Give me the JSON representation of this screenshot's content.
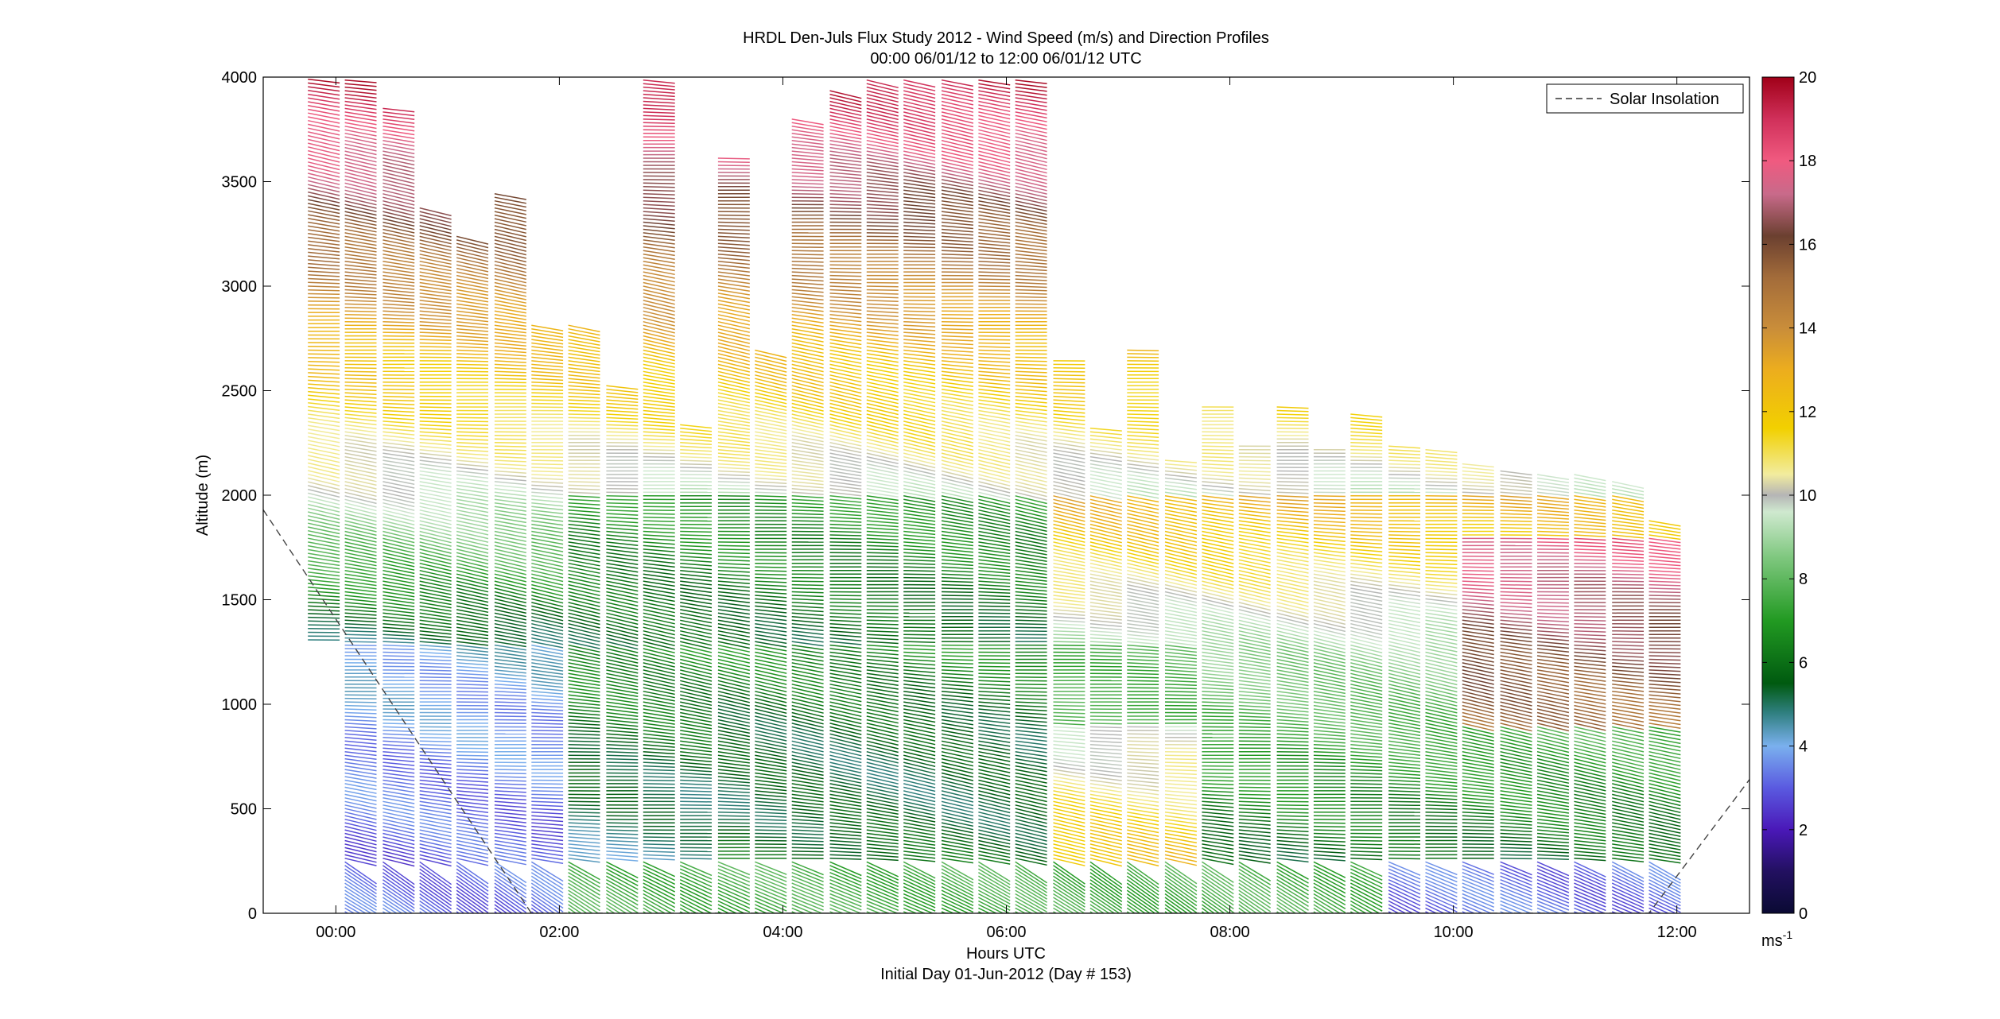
{
  "chart_data": {
    "type": "scatter",
    "title_line1": "HRDL Den-Juls Flux Study 2012 - Wind Speed (m/s) and Direction Profiles",
    "title_line2": "00:00 06/01/12 to 12:00 06/01/12  UTC",
    "xlabel": "Hours UTC",
    "xlabel_sub": "Initial Day 01-Jun-2012 (Day # 153)",
    "ylabel": "Altitude (m)",
    "xlim": [
      -0.65,
      12.65
    ],
    "ylim": [
      0,
      4000
    ],
    "x_ticks": [
      {
        "value": 0,
        "label": "00:00"
      },
      {
        "value": 2,
        "label": "02:00"
      },
      {
        "value": 4,
        "label": "04:00"
      },
      {
        "value": 6,
        "label": "06:00"
      },
      {
        "value": 8,
        "label": "08:00"
      },
      {
        "value": 10,
        "label": "10:00"
      },
      {
        "value": 12,
        "label": "12:00"
      }
    ],
    "y_ticks": [
      0,
      500,
      1000,
      1500,
      2000,
      2500,
      3000,
      3500,
      4000
    ],
    "legend": {
      "label": "Solar Insolation",
      "position": "top-right"
    },
    "colorbar": {
      "range": [
        0,
        20
      ],
      "ticks": [
        0,
        2,
        4,
        6,
        8,
        10,
        12,
        14,
        16,
        18,
        20
      ],
      "unit_base": "ms",
      "unit_exp": "-1",
      "stops": [
        {
          "v": 0,
          "c": "#0a0a33"
        },
        {
          "v": 1,
          "c": "#221060"
        },
        {
          "v": 2,
          "c": "#4a18b8"
        },
        {
          "v": 3,
          "c": "#5a5ae0"
        },
        {
          "v": 4,
          "c": "#7ab0ee"
        },
        {
          "v": 4.8,
          "c": "#2f7f7f"
        },
        {
          "v": 5.5,
          "c": "#005a10"
        },
        {
          "v": 7,
          "c": "#229a22"
        },
        {
          "v": 8.5,
          "c": "#7ec77e"
        },
        {
          "v": 9.6,
          "c": "#cfe9cf"
        },
        {
          "v": 10,
          "c": "#b5b5b5"
        },
        {
          "v": 10.5,
          "c": "#f2ec9e"
        },
        {
          "v": 11.6,
          "c": "#f2d000"
        },
        {
          "v": 13,
          "c": "#ecad1e"
        },
        {
          "v": 14,
          "c": "#c98d3a"
        },
        {
          "v": 15.2,
          "c": "#a36c3a"
        },
        {
          "v": 16.2,
          "c": "#6b4030"
        },
        {
          "v": 17.2,
          "c": "#c86a8a"
        },
        {
          "v": 18,
          "c": "#f05a80"
        },
        {
          "v": 19,
          "c": "#d0305a"
        },
        {
          "v": 20,
          "c": "#a00018"
        }
      ]
    },
    "solar_insolation_line": [
      {
        "x": -0.65,
        "y": 1930
      },
      {
        "x": 1.75,
        "y": 0
      },
      {
        "x": 11.75,
        "y": 0
      },
      {
        "x": 12.65,
        "y": 640
      }
    ],
    "profiles": [
      {
        "time": -0.25,
        "top": 4000,
        "bottom": 1300
      },
      {
        "time": 0.08,
        "top": 4000,
        "bottom": 0
      },
      {
        "time": 0.42,
        "top": 3850,
        "bottom": 0
      },
      {
        "time": 0.75,
        "top": 3380,
        "bottom": 0
      },
      {
        "time": 1.08,
        "top": 3250,
        "bottom": 0
      },
      {
        "time": 1.42,
        "top": 3450,
        "bottom": 0
      },
      {
        "time": 1.75,
        "top": 2820,
        "bottom": 0
      },
      {
        "time": 2.08,
        "top": 2820,
        "bottom": 0
      },
      {
        "time": 2.42,
        "top": 2530,
        "bottom": 0
      },
      {
        "time": 2.75,
        "top": 4000,
        "bottom": 0
      },
      {
        "time": 3.08,
        "top": 2350,
        "bottom": 0
      },
      {
        "time": 3.42,
        "top": 3620,
        "bottom": 0
      },
      {
        "time": 3.75,
        "top": 2700,
        "bottom": 0
      },
      {
        "time": 4.08,
        "top": 3800,
        "bottom": 0
      },
      {
        "time": 4.42,
        "top": 3950,
        "bottom": 0
      },
      {
        "time": 4.75,
        "top": 4000,
        "bottom": 0
      },
      {
        "time": 5.08,
        "top": 4000,
        "bottom": 0
      },
      {
        "time": 5.42,
        "top": 4000,
        "bottom": 0
      },
      {
        "time": 5.75,
        "top": 4000,
        "bottom": 0
      },
      {
        "time": 6.08,
        "top": 4000,
        "bottom": 0
      },
      {
        "time": 6.42,
        "top": 2650,
        "bottom": 0
      },
      {
        "time": 6.75,
        "top": 2320,
        "bottom": 0
      },
      {
        "time": 7.08,
        "top": 2700,
        "bottom": 0
      },
      {
        "time": 7.42,
        "top": 2180,
        "bottom": 0
      },
      {
        "time": 7.75,
        "top": 2430,
        "bottom": 0
      },
      {
        "time": 8.08,
        "top": 2250,
        "bottom": 0
      },
      {
        "time": 8.42,
        "top": 2430,
        "bottom": 0
      },
      {
        "time": 8.75,
        "top": 2220,
        "bottom": 0
      },
      {
        "time": 9.08,
        "top": 2400,
        "bottom": 0
      },
      {
        "time": 9.42,
        "top": 2240,
        "bottom": 0
      },
      {
        "time": 9.75,
        "top": 2220,
        "bottom": 0
      },
      {
        "time": 10.08,
        "top": 2160,
        "bottom": 0
      },
      {
        "time": 10.42,
        "top": 2120,
        "bottom": 0
      },
      {
        "time": 10.75,
        "top": 2110,
        "bottom": 0
      },
      {
        "time": 11.08,
        "top": 2110,
        "bottom": 0
      },
      {
        "time": 11.42,
        "top": 2080,
        "bottom": 0
      },
      {
        "time": 11.75,
        "top": 1880,
        "bottom": 0
      }
    ]
  }
}
